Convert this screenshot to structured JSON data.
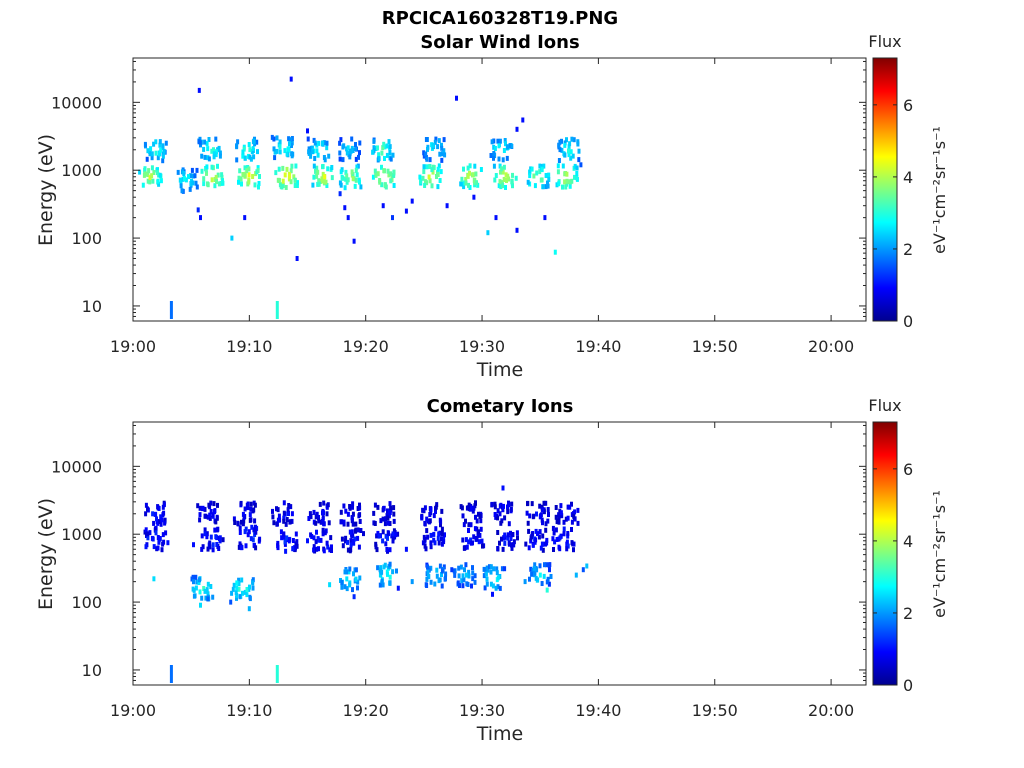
{
  "figure_title": "RPCICA160328T19.PNG",
  "colors": {
    "axis": "#262626",
    "background": "#ffffff",
    "colormap": [
      "#00008f",
      "#0000ff",
      "#0080ff",
      "#00ffff",
      "#80ff80",
      "#ffff00",
      "#ff8000",
      "#ff0000",
      "#800000"
    ]
  },
  "chart_data": [
    {
      "type": "heatmap",
      "title": "Solar Wind Ions",
      "xlabel": "Time",
      "ylabel": "Energy (eV)",
      "x_ticks": [
        "19:00",
        "19:10",
        "19:20",
        "19:30",
        "19:40",
        "19:50",
        "20:00"
      ],
      "x_range_min": [
        0,
        63
      ],
      "y_scale": "log",
      "y_ticks": [
        "10",
        "100",
        "1000",
        "10000"
      ],
      "y_range": [
        6,
        45000
      ],
      "colorbar": {
        "label": "Flux",
        "units": "eV⁻¹cm⁻²sr⁻¹s⁻¹",
        "range": [
          0,
          7.3
        ],
        "ticks": [
          "0",
          "2",
          "4",
          "6"
        ]
      },
      "blobs": [
        {
          "t": 1.5,
          "e": 800,
          "v": 4.2
        },
        {
          "t": 2.0,
          "e": 2000,
          "v": 3.0
        },
        {
          "t": 4.6,
          "e": 700,
          "v": 2.8
        },
        {
          "t": 6.8,
          "e": 800,
          "v": 4.5
        },
        {
          "t": 6.6,
          "e": 2000,
          "v": 3.2
        },
        {
          "t": 10.0,
          "e": 800,
          "v": 4.6
        },
        {
          "t": 9.8,
          "e": 2000,
          "v": 3.3
        },
        {
          "t": 13.2,
          "e": 800,
          "v": 4.8
        },
        {
          "t": 12.9,
          "e": 2100,
          "v": 3.0
        },
        {
          "t": 16.3,
          "e": 800,
          "v": 4.5
        },
        {
          "t": 16.0,
          "e": 2000,
          "v": 3.0
        },
        {
          "t": 18.7,
          "e": 800,
          "v": 4.0
        },
        {
          "t": 18.6,
          "e": 2000,
          "v": 2.5
        },
        {
          "t": 21.6,
          "e": 800,
          "v": 4.6
        },
        {
          "t": 21.5,
          "e": 2000,
          "v": 3.4
        },
        {
          "t": 25.6,
          "e": 800,
          "v": 4.4
        },
        {
          "t": 25.9,
          "e": 2000,
          "v": 2.8
        },
        {
          "t": 29.0,
          "e": 800,
          "v": 4.3
        },
        {
          "t": 32.0,
          "e": 800,
          "v": 4.4
        },
        {
          "t": 31.7,
          "e": 2000,
          "v": 3.0
        },
        {
          "t": 34.8,
          "e": 800,
          "v": 3.8
        },
        {
          "t": 37.3,
          "e": 800,
          "v": 4.4
        },
        {
          "t": 37.5,
          "e": 2000,
          "v": 3.1
        }
      ],
      "points": [
        {
          "t": 5.7,
          "e": 15000,
          "v": 1.0
        },
        {
          "t": 13.6,
          "e": 22000,
          "v": 1.0
        },
        {
          "t": 27.8,
          "e": 11500,
          "v": 1.0
        },
        {
          "t": 33.5,
          "e": 5500,
          "v": 1.0
        },
        {
          "t": 33.0,
          "e": 4000,
          "v": 1.0
        },
        {
          "t": 15.0,
          "e": 3800,
          "v": 1.0
        },
        {
          "t": 5.8,
          "e": 200,
          "v": 1.0
        },
        {
          "t": 5.6,
          "e": 260,
          "v": 1.2
        },
        {
          "t": 9.6,
          "e": 200,
          "v": 1.0
        },
        {
          "t": 8.5,
          "e": 100,
          "v": 2.4
        },
        {
          "t": 14.1,
          "e": 50,
          "v": 1.0
        },
        {
          "t": 18.5,
          "e": 200,
          "v": 1.0
        },
        {
          "t": 18.2,
          "e": 280,
          "v": 1.0
        },
        {
          "t": 19.0,
          "e": 90,
          "v": 1.0
        },
        {
          "t": 21.5,
          "e": 300,
          "v": 1.0
        },
        {
          "t": 22.3,
          "e": 200,
          "v": 1.3
        },
        {
          "t": 23.5,
          "e": 250,
          "v": 1.0
        },
        {
          "t": 27.0,
          "e": 300,
          "v": 1.0
        },
        {
          "t": 31.2,
          "e": 200,
          "v": 1.0
        },
        {
          "t": 33.0,
          "e": 130,
          "v": 1.0
        },
        {
          "t": 30.5,
          "e": 120,
          "v": 2.4
        },
        {
          "t": 35.4,
          "e": 200,
          "v": 1.0
        },
        {
          "t": 36.3,
          "e": 62,
          "v": 2.8
        },
        {
          "t": 17.8,
          "e": 450,
          "v": 1.2
        },
        {
          "t": 24.0,
          "e": 350,
          "v": 1.0
        },
        {
          "t": 29.3,
          "e": 400,
          "v": 1.0
        },
        {
          "t": 38.5,
          "e": 1200,
          "v": 1.5
        }
      ],
      "low_bars": [
        {
          "t": 3.3,
          "v": 1.7
        },
        {
          "t": 12.4,
          "v": 3.0
        }
      ]
    },
    {
      "type": "heatmap",
      "title": "Cometary Ions",
      "xlabel": "Time",
      "ylabel": "Energy (eV)",
      "x_ticks": [
        "19:00",
        "19:10",
        "19:20",
        "19:30",
        "19:40",
        "19:50",
        "20:00"
      ],
      "x_range_min": [
        0,
        63
      ],
      "y_scale": "log",
      "y_ticks": [
        "10",
        "100",
        "1000",
        "10000"
      ],
      "y_range": [
        6,
        45000
      ],
      "colorbar": {
        "label": "Flux",
        "units": "eV⁻¹cm⁻²sr⁻¹s⁻¹",
        "range": [
          0,
          7.3
        ],
        "ticks": [
          "0",
          "2",
          "4",
          "6"
        ]
      },
      "blobs": [
        {
          "t": 2.0,
          "e": 2000,
          "v": 1.0
        },
        {
          "t": 1.9,
          "e": 850,
          "v": 1.2
        },
        {
          "t": 6.5,
          "e": 2000,
          "v": 0.9
        },
        {
          "t": 6.8,
          "e": 850,
          "v": 1.1
        },
        {
          "t": 6.0,
          "e": 160,
          "v": 3.0
        },
        {
          "t": 9.6,
          "e": 2000,
          "v": 0.9
        },
        {
          "t": 10.0,
          "e": 900,
          "v": 1.2
        },
        {
          "t": 9.4,
          "e": 160,
          "v": 3.2
        },
        {
          "t": 12.8,
          "e": 2000,
          "v": 0.9
        },
        {
          "t": 13.2,
          "e": 800,
          "v": 1.2
        },
        {
          "t": 16.0,
          "e": 2000,
          "v": 0.9
        },
        {
          "t": 16.2,
          "e": 800,
          "v": 1.1
        },
        {
          "t": 18.6,
          "e": 2000,
          "v": 0.8
        },
        {
          "t": 18.9,
          "e": 800,
          "v": 1.0
        },
        {
          "t": 18.6,
          "e": 220,
          "v": 2.8
        },
        {
          "t": 21.6,
          "e": 2000,
          "v": 0.8
        },
        {
          "t": 21.8,
          "e": 800,
          "v": 1.1
        },
        {
          "t": 21.9,
          "e": 250,
          "v": 3.0
        },
        {
          "t": 25.7,
          "e": 2000,
          "v": 0.8
        },
        {
          "t": 25.9,
          "e": 850,
          "v": 1.0
        },
        {
          "t": 26.0,
          "e": 250,
          "v": 2.5
        },
        {
          "t": 29.0,
          "e": 2000,
          "v": 0.8
        },
        {
          "t": 29.2,
          "e": 850,
          "v": 1.0
        },
        {
          "t": 28.5,
          "e": 250,
          "v": 2.4
        },
        {
          "t": 31.7,
          "e": 2000,
          "v": 0.8
        },
        {
          "t": 32.2,
          "e": 800,
          "v": 1.0
        },
        {
          "t": 31.0,
          "e": 230,
          "v": 2.9
        },
        {
          "t": 34.8,
          "e": 2000,
          "v": 0.8
        },
        {
          "t": 34.7,
          "e": 800,
          "v": 1.0
        },
        {
          "t": 35.0,
          "e": 250,
          "v": 2.6
        },
        {
          "t": 37.3,
          "e": 2000,
          "v": 0.8
        },
        {
          "t": 37.0,
          "e": 850,
          "v": 1.2
        }
      ],
      "points": [
        {
          "t": 31.8,
          "e": 4800,
          "v": 1.0
        },
        {
          "t": 1.8,
          "e": 220,
          "v": 2.5
        },
        {
          "t": 5.8,
          "e": 90,
          "v": 2.5
        },
        {
          "t": 9.2,
          "e": 120,
          "v": 2.0
        },
        {
          "t": 10.0,
          "e": 80,
          "v": 2.2
        },
        {
          "t": 8.4,
          "e": 100,
          "v": 1.5
        },
        {
          "t": 16.9,
          "e": 180,
          "v": 2.5
        },
        {
          "t": 19.0,
          "e": 120,
          "v": 1.2
        },
        {
          "t": 22.8,
          "e": 160,
          "v": 1.0
        },
        {
          "t": 24.0,
          "e": 200,
          "v": 2.0
        },
        {
          "t": 25.2,
          "e": 180,
          "v": 1.5
        },
        {
          "t": 27.4,
          "e": 300,
          "v": 1.3
        },
        {
          "t": 30.9,
          "e": 130,
          "v": 1.0
        },
        {
          "t": 33.7,
          "e": 200,
          "v": 2.0
        },
        {
          "t": 35.6,
          "e": 150,
          "v": 3.0
        },
        {
          "t": 38.1,
          "e": 250,
          "v": 2.2
        },
        {
          "t": 39.0,
          "e": 340,
          "v": 2.3
        },
        {
          "t": 38.7,
          "e": 300,
          "v": 1.5
        },
        {
          "t": 5.2,
          "e": 700,
          "v": 1.0
        },
        {
          "t": 3.0,
          "e": 750,
          "v": 1.0
        },
        {
          "t": 15.0,
          "e": 800,
          "v": 1.0
        },
        {
          "t": 23.5,
          "e": 600,
          "v": 1.0
        },
        {
          "t": 35.8,
          "e": 300,
          "v": 1.2
        }
      ],
      "low_bars": [
        {
          "t": 3.3,
          "v": 1.7
        },
        {
          "t": 12.4,
          "v": 3.0
        }
      ]
    }
  ]
}
